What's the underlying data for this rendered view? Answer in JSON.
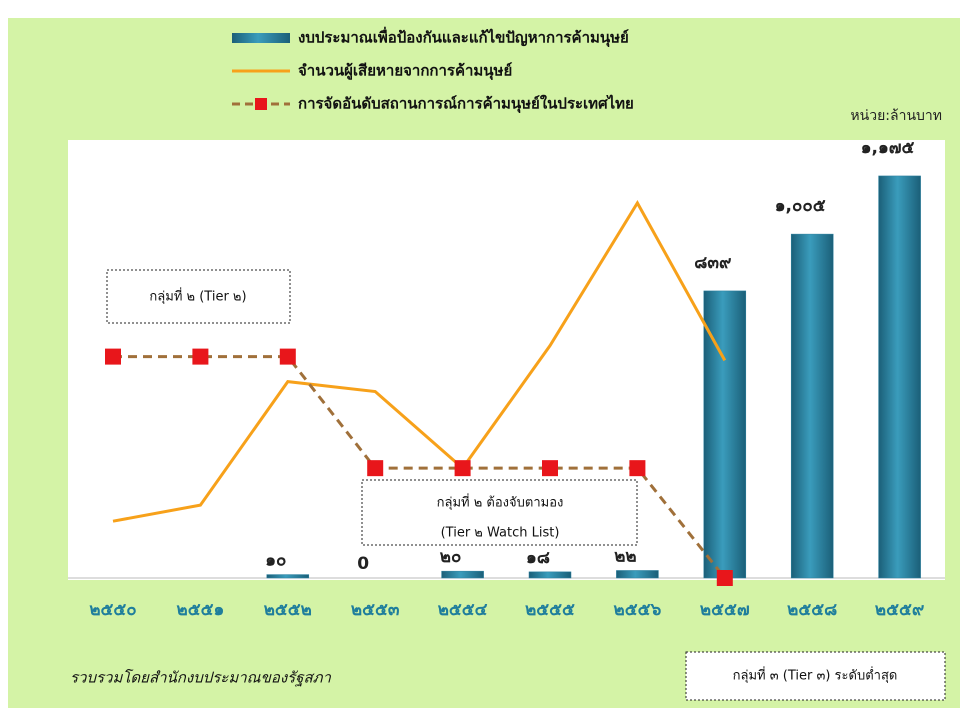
{
  "chart_data": {
    "type": "bar",
    "categories": [
      "๒๕๕๐",
      "๒๕๕๑",
      "๒๕๕๒",
      "๒๕๕๓",
      "๒๕๕๔",
      "๒๕๕๕",
      "๒๕๕๖",
      "๒๕๕๗",
      "๒๕๕๘",
      "๒๕๕๙"
    ],
    "ylim": [
      0,
      1280
    ],
    "unit_label": "หน่วย:ล้านบาท",
    "series": [
      {
        "name": "งบประมาณเพื่อป้องกันและแก้ไขปัญหาการค้ามนุษย์",
        "type": "bar",
        "color": "#2a7f9e",
        "values": [
          null,
          null,
          10,
          0,
          20,
          18,
          22,
          839,
          1005,
          1175
        ],
        "value_labels": [
          null,
          null,
          "๑๐",
          "0",
          "๒๐",
          "๑๘",
          "๒๒",
          "๘๓๙",
          "๑,๐๐๕",
          "๑,๑๗๕"
        ]
      },
      {
        "name": "จำนวนผู้เสียหายจากการค้ามนุษย์",
        "type": "line",
        "color": "#f7a11a",
        "values": [
          166,
          213,
          574,
          545,
          321,
          679,
          1096,
          636,
          null,
          null
        ]
      },
      {
        "name": "การจัดอันดับสถานการณ์การค้ามนุษย์ในประเทศไทย",
        "type": "line",
        "dashed": true,
        "marker": "square",
        "color": "#a0703a",
        "marker_color": "#e8161b",
        "values": [
          647,
          647,
          647,
          321,
          321,
          321,
          321,
          0,
          null,
          null
        ]
      }
    ],
    "annotations": [
      "กลุ่มที่ ๒ (Tier ๒)",
      "กลุ่มที่ ๒ ต้องจับตามอง",
      "(Tier ๒ Watch List)",
      "กลุ่มที่ ๓ (Tier ๓) ระดับต่ำสุด"
    ],
    "source": "รวบรวมโดยสำนักงบประมาณของรัฐสภา"
  }
}
